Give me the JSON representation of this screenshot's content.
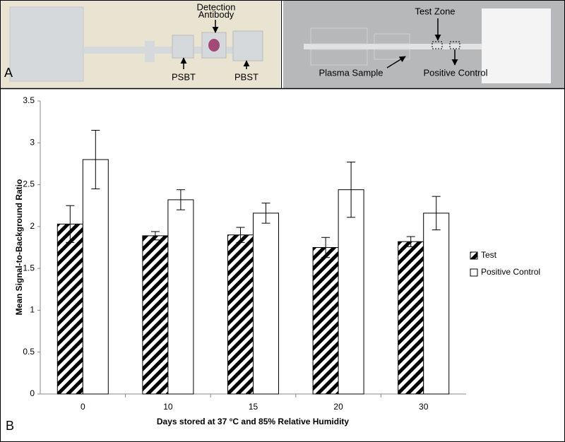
{
  "panel_a": {
    "label": "A",
    "annotations": {
      "detection_antibody": [
        "Detection",
        "Antibody"
      ],
      "psbt": "PSBT",
      "pbst": "PBST",
      "test_zone": "Test Zone",
      "plasma_sample": "Plasma Sample",
      "positive_control": "Positive Control"
    }
  },
  "chart_data": {
    "type": "bar",
    "panel_label": "B",
    "x_label": "Days stored at 37 °C and 85% Relative Humidity",
    "y_label": "Mean Signal-to-Background Ratio",
    "categories": [
      "0",
      "10",
      "15",
      "20",
      "30"
    ],
    "series": [
      {
        "name": "Test",
        "color": "#000000",
        "hatch": true,
        "values": [
          2.03,
          1.89,
          1.9,
          1.75,
          1.82
        ],
        "errors": [
          0.22,
          0.05,
          0.09,
          0.12,
          0.06
        ]
      },
      {
        "name": "Positive Control",
        "color": "#ffffff",
        "hatch": false,
        "values": [
          2.8,
          2.32,
          2.16,
          2.44,
          2.16
        ],
        "errors": [
          0.35,
          0.12,
          0.12,
          0.33,
          0.2
        ]
      }
    ],
    "ylim": [
      0,
      3.5
    ],
    "yticks": [
      0,
      0.5,
      1,
      1.5,
      2,
      2.5,
      3,
      3.5
    ],
    "grid": false,
    "legend": "right"
  }
}
